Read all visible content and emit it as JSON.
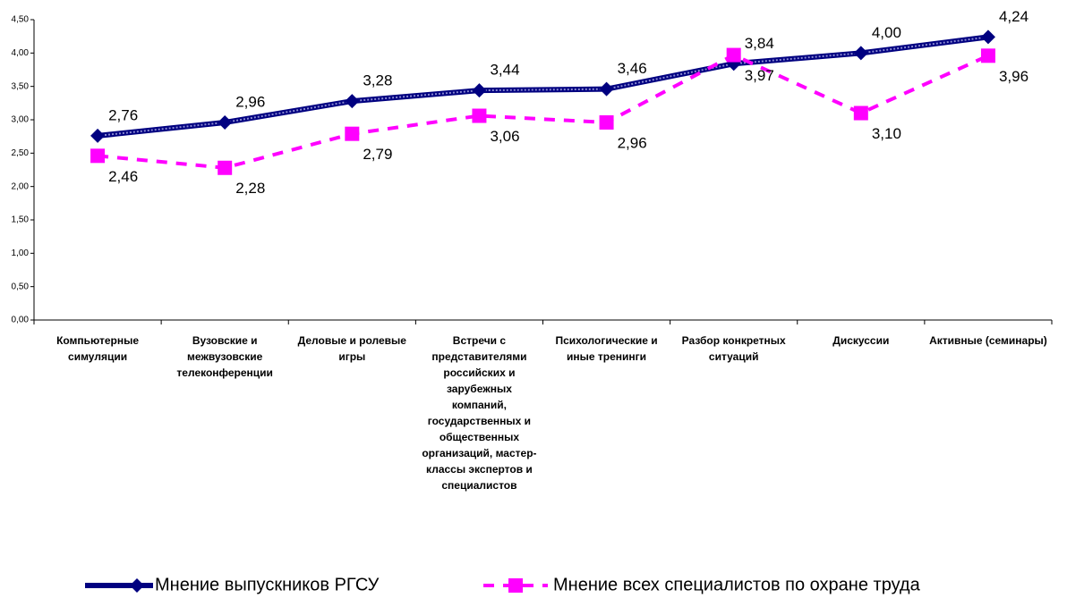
{
  "chart_data": {
    "type": "line",
    "categories": [
      "Компьютерные симуляции",
      "Вузовские и межвузовские телеконференции",
      "Деловые и ролевые игры",
      "Встречи с представителями российских и зарубежных компаний, государственных и общественных организаций, мастер-классы экспертов и специалистов",
      "Психологические и иные тренинги",
      "Разбор конкретных ситуаций",
      "Дискуссии",
      "Активные (семинары)"
    ],
    "series": [
      {
        "name": "Мнение выпускников РГСУ",
        "color": "#000080",
        "marker": "diamond",
        "dashed": false,
        "values": [
          2.76,
          2.96,
          3.28,
          3.44,
          3.46,
          3.84,
          4.0,
          4.24
        ],
        "value_labels": [
          "2,76",
          "2,96",
          "3,28",
          "3,44",
          "3,46",
          "3,84",
          "4,00",
          "4,24"
        ]
      },
      {
        "name": "Мнение всех специалистов по охране труда",
        "color": "#ff00ff",
        "marker": "square",
        "dashed": true,
        "values": [
          2.46,
          2.28,
          2.79,
          3.06,
          2.96,
          3.97,
          3.1,
          3.96
        ],
        "value_labels": [
          "2,46",
          "2,28",
          "2,79",
          "3,06",
          "2,96",
          "3,97",
          "3,10",
          "3,96"
        ]
      }
    ],
    "ylim": [
      0,
      4.5
    ],
    "yticks": [
      {
        "value": 0,
        "label": "0,00"
      },
      {
        "value": 0.5,
        "label": "0,50"
      },
      {
        "value": 1,
        "label": "1,00"
      },
      {
        "value": 1.5,
        "label": "1,50"
      },
      {
        "value": 2,
        "label": "2,00"
      },
      {
        "value": 2.5,
        "label": "2,50"
      },
      {
        "value": 3,
        "label": "3,00"
      },
      {
        "value": 3.5,
        "label": "3,50"
      },
      {
        "value": 4,
        "label": "4,00"
      },
      {
        "value": 4.5,
        "label": "4,50"
      }
    ],
    "grid": false
  }
}
